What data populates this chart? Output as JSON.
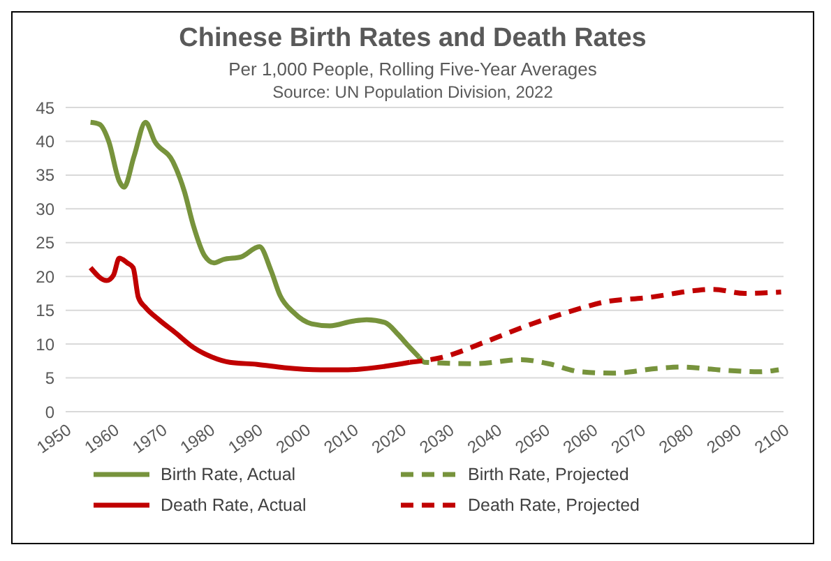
{
  "chart_data": {
    "type": "line",
    "title": "Chinese Birth Rates and Death Rates",
    "subtitle": "Per 1,000 People, Rolling Five-Year Averages",
    "annotations": [
      "Source:  UN Population Division, 2022"
    ],
    "xlim": [
      1950,
      2100
    ],
    "xticks": [
      1950,
      1960,
      1970,
      1980,
      1990,
      2000,
      2010,
      2020,
      2030,
      2040,
      2050,
      2060,
      2070,
      2080,
      2090,
      2100
    ],
    "ylim": [
      0,
      45
    ],
    "yticks": [
      0,
      5,
      10,
      15,
      20,
      25,
      30,
      35,
      40,
      45
    ],
    "grid": "y",
    "legend": "bottom",
    "marker": "none",
    "series": [
      {
        "name": "Birth Rate, Actual",
        "color": "#77933c",
        "line_style": "solid",
        "x": [
          1955.2,
          1957.1,
          1959,
          1961.2,
          1962.2,
          1964.3,
          1966.7,
          1968.6,
          1972.4,
          1974.8,
          1976.7,
          1979,
          1981,
          1982.9,
          1986.7,
          1990.5,
          1992.9,
          1994.8,
          1997.6,
          2001.4,
          2005.2,
          2010,
          2012.9,
          2016.7,
          2019.5,
          2021.4,
          2023.8
        ],
        "values": [
          42.8,
          42.5,
          40,
          34.1,
          33.2,
          37.8,
          42.8,
          40,
          37,
          32.6,
          27.5,
          23.1,
          22,
          22.5,
          22.9,
          24.4,
          20.9,
          17.2,
          14.7,
          13,
          12.7,
          13.4,
          13.6,
          13.2,
          11.4,
          9.9,
          8.1
        ]
      },
      {
        "name": "Birth Rate, Projected",
        "color": "#77933c",
        "line_style": "dashed",
        "x": [
          2023.8,
          2025,
          2035.7,
          2045.2,
          2050.9,
          2057.6,
          2064.3,
          2073.8,
          2078.6,
          2088.1,
          2094.8,
          2099
        ],
        "values": [
          8.1,
          7.3,
          7.1,
          7.7,
          7.1,
          5.9,
          5.7,
          6.4,
          6.6,
          6.1,
          5.9,
          6.2
        ]
      },
      {
        "name": "Death Rate, Actual",
        "color": "#c00000",
        "line_style": "solid",
        "x": [
          1955.2,
          1958.6,
          1960,
          1961.2,
          1962.9,
          1964.1,
          1965.2,
          1966.7,
          1969.5,
          1972.9,
          1976.7,
          1980.5,
          1984.3,
          1990,
          1995.7,
          2003.3,
          2009,
          2016.7,
          2021.9
        ],
        "values": [
          21.3,
          19.4,
          20.2,
          22.7,
          22,
          21.3,
          16.9,
          15.4,
          13.6,
          11.7,
          9.5,
          8.1,
          7.3,
          7,
          6.5,
          6.2,
          6.2,
          6.7,
          7.3
        ]
      },
      {
        "name": "Death Rate, Projected",
        "color": "#c00000",
        "line_style": "dashed",
        "x": [
          2021.9,
          2029,
          2037.6,
          2047.1,
          2056.7,
          2062.4,
          2071.9,
          2081.4,
          2085.2,
          2091.9,
          2099.5
        ],
        "values": [
          7.3,
          8.1,
          10.3,
          12.9,
          15.1,
          16.2,
          16.9,
          17.9,
          18.1,
          17.5,
          17.7
        ]
      }
    ]
  }
}
